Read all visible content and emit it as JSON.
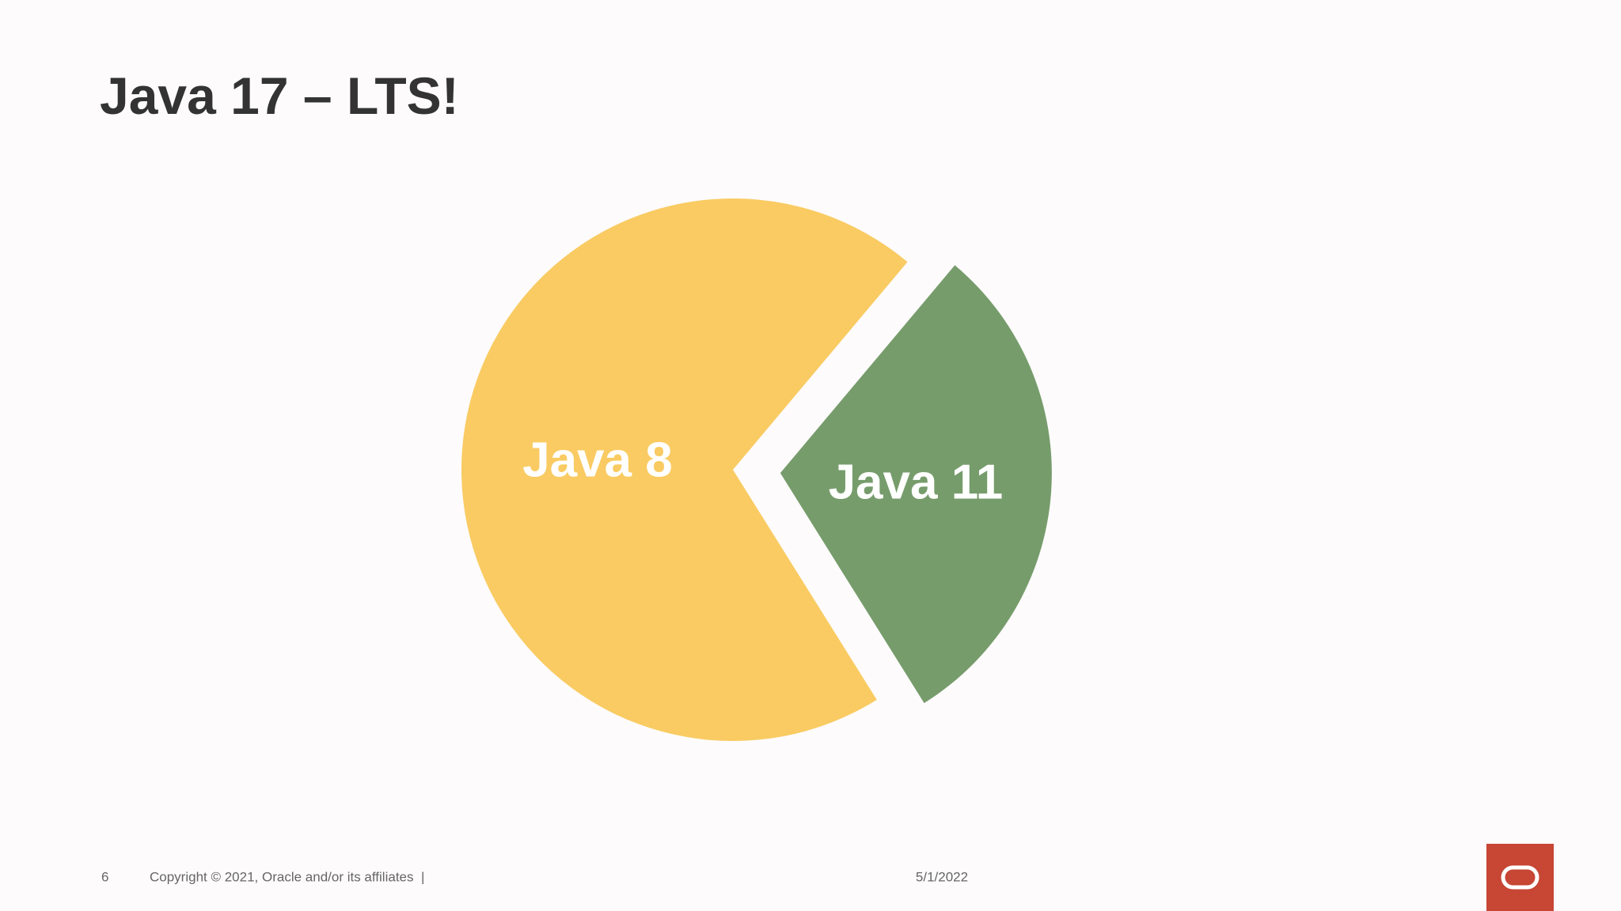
{
  "chart_data": {
    "type": "pie",
    "title": "Java 17 – LTS!",
    "categories": [
      "Java 8",
      "Java 11"
    ],
    "values": [
      70,
      30
    ],
    "colors": [
      "#f9cb62",
      "#769c6b"
    ],
    "exploded": [
      false,
      true
    ]
  },
  "footer": {
    "page_number": "6",
    "copyright": "Copyright © 2021, Oracle and/or its affiliates  |",
    "date": "5/1/2022"
  }
}
